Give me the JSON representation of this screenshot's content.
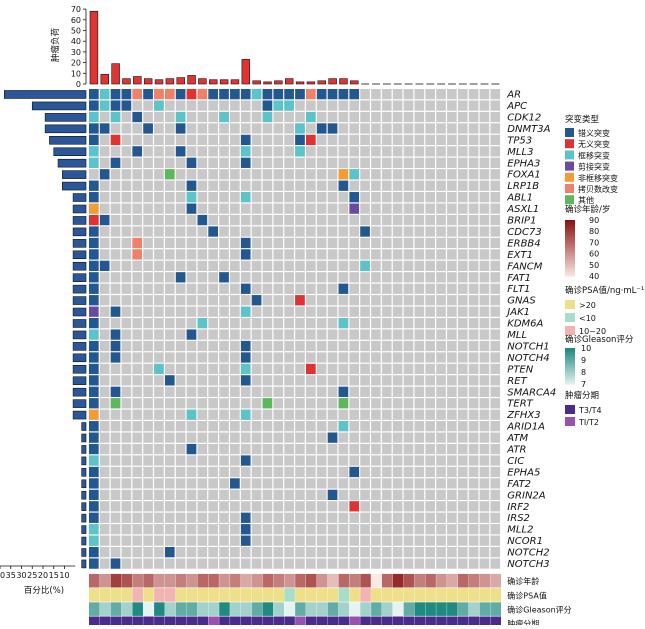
{
  "chart_data": {
    "type": "heatmap",
    "genes": [
      "AR",
      "APC",
      "CDK12",
      "DNMT3A",
      "TP53",
      "MLL3",
      "EPHA3",
      "FOXA1",
      "LRP1B",
      "ABL1",
      "ASXL1",
      "BRIP1",
      "CDC73",
      "ERBB4",
      "EXT1",
      "FANCM",
      "FAT1",
      "FLT1",
      "GNAS",
      "JAK1",
      "KDM6A",
      "MLL",
      "NOTCH1",
      "NOTCH4",
      "PTEN",
      "RET",
      "SMARCA4",
      "TERT",
      "ZFHX3",
      "ARID1A",
      "ATM",
      "ATR",
      "CIC",
      "EPHA5",
      "FAT2",
      "GRIN2A",
      "IRF2",
      "IRS2",
      "MLL2",
      "NCOR1",
      "NOTCH2",
      "NOTCH3"
    ],
    "gene_percent": [
      38,
      25,
      19,
      19,
      17,
      15,
      13,
      11,
      11,
      6,
      6,
      6,
      6,
      6,
      6,
      6,
      6,
      6,
      6,
      6,
      6,
      6,
      6,
      6,
      6,
      6,
      6,
      6,
      6,
      2,
      2,
      2,
      2,
      2,
      2,
      2,
      2,
      2,
      2,
      2,
      2,
      2
    ],
    "percent_axis": {
      "label": "百分比(%)",
      "ticks": [
        40,
        35,
        30,
        25,
        20,
        15,
        10
      ]
    },
    "tumor_burden": {
      "label": "肿瘤负荷",
      "ticks": [
        0,
        10,
        20,
        30,
        40,
        50,
        60,
        70
      ],
      "values": [
        68,
        9,
        19,
        5,
        7,
        5,
        4,
        5,
        6,
        8,
        5,
        4,
        4,
        4,
        23,
        3,
        2,
        3,
        5,
        2,
        2,
        3,
        5,
        5,
        3,
        0,
        0,
        0,
        0,
        0,
        0,
        0,
        0,
        0,
        0,
        0,
        0,
        0
      ]
    },
    "mutation_types": [
      "错义突变",
      "无义突变",
      "框移突变",
      "剪接突变",
      "非框移突变",
      "拷贝数改变",
      "其他"
    ],
    "mutation_colors": [
      "#23578f",
      "#e03232",
      "#5cc3c9",
      "#6a4a9c",
      "#f39c34",
      "#f08068",
      "#5cb85c"
    ],
    "mutations": [
      [
        0,
        0,
        0
      ],
      [
        0,
        1,
        2
      ],
      [
        0,
        2,
        0
      ],
      [
        0,
        3,
        0
      ],
      [
        0,
        4,
        5
      ],
      [
        0,
        5,
        0
      ],
      [
        0,
        6,
        5
      ],
      [
        0,
        7,
        5
      ],
      [
        0,
        8,
        0
      ],
      [
        0,
        9,
        1
      ],
      [
        0,
        10,
        5
      ],
      [
        0,
        11,
        0
      ],
      [
        0,
        12,
        0
      ],
      [
        0,
        13,
        0
      ],
      [
        0,
        14,
        0
      ],
      [
        0,
        15,
        2
      ],
      [
        0,
        16,
        0
      ],
      [
        0,
        17,
        0
      ],
      [
        0,
        18,
        0
      ],
      [
        0,
        19,
        0
      ],
      [
        0,
        20,
        5
      ],
      [
        0,
        21,
        0
      ],
      [
        0,
        22,
        0
      ],
      [
        0,
        23,
        0
      ],
      [
        0,
        24,
        0
      ],
      [
        1,
        0,
        0
      ],
      [
        1,
        1,
        2
      ],
      [
        1,
        2,
        0
      ],
      [
        1,
        3,
        0
      ],
      [
        1,
        6,
        2
      ],
      [
        1,
        16,
        0
      ],
      [
        1,
        17,
        2
      ],
      [
        1,
        18,
        2
      ],
      [
        2,
        0,
        2
      ],
      [
        2,
        2,
        2
      ],
      [
        2,
        4,
        0
      ],
      [
        2,
        8,
        2
      ],
      [
        2,
        12,
        2
      ],
      [
        2,
        16,
        2
      ],
      [
        2,
        20,
        2
      ],
      [
        3,
        0,
        0
      ],
      [
        3,
        1,
        0
      ],
      [
        3,
        5,
        0
      ],
      [
        3,
        8,
        0
      ],
      [
        3,
        19,
        2
      ],
      [
        3,
        21,
        0
      ],
      [
        3,
        22,
        0
      ],
      [
        4,
        0,
        0
      ],
      [
        4,
        2,
        1
      ],
      [
        4,
        14,
        0
      ],
      [
        4,
        19,
        0
      ],
      [
        4,
        20,
        1
      ],
      [
        5,
        0,
        2
      ],
      [
        5,
        4,
        0
      ],
      [
        5,
        8,
        0
      ],
      [
        5,
        14,
        2
      ],
      [
        5,
        19,
        2
      ],
      [
        6,
        0,
        2
      ],
      [
        6,
        2,
        0
      ],
      [
        6,
        9,
        0
      ],
      [
        6,
        14,
        0
      ],
      [
        7,
        1,
        0
      ],
      [
        7,
        7,
        6
      ],
      [
        7,
        23,
        4
      ],
      [
        7,
        24,
        2
      ],
      [
        8,
        0,
        0
      ],
      [
        8,
        9,
        0
      ],
      [
        8,
        23,
        0
      ],
      [
        9,
        0,
        0
      ],
      [
        9,
        9,
        2
      ],
      [
        9,
        14,
        2
      ],
      [
        9,
        24,
        0
      ],
      [
        10,
        0,
        4
      ],
      [
        10,
        9,
        0
      ],
      [
        10,
        24,
        3
      ],
      [
        11,
        0,
        1
      ],
      [
        11,
        1,
        0
      ],
      [
        11,
        10,
        0
      ],
      [
        12,
        0,
        0
      ],
      [
        12,
        11,
        0
      ],
      [
        12,
        25,
        0
      ],
      [
        13,
        0,
        0
      ],
      [
        13,
        4,
        5
      ],
      [
        13,
        14,
        0
      ],
      [
        14,
        0,
        0
      ],
      [
        14,
        4,
        5
      ],
      [
        14,
        14,
        0
      ],
      [
        15,
        0,
        0
      ],
      [
        15,
        1,
        0
      ],
      [
        15,
        25,
        2
      ],
      [
        16,
        0,
        0
      ],
      [
        16,
        8,
        0
      ],
      [
        16,
        12,
        0
      ],
      [
        17,
        0,
        0
      ],
      [
        17,
        14,
        0
      ],
      [
        17,
        23,
        0
      ],
      [
        18,
        0,
        0
      ],
      [
        18,
        15,
        0
      ],
      [
        18,
        19,
        1
      ],
      [
        19,
        0,
        3
      ],
      [
        19,
        2,
        0
      ],
      [
        19,
        14,
        2
      ],
      [
        20,
        0,
        0
      ],
      [
        20,
        10,
        2
      ],
      [
        20,
        23,
        2
      ],
      [
        21,
        0,
        2
      ],
      [
        21,
        2,
        0
      ],
      [
        21,
        9,
        0
      ],
      [
        22,
        0,
        0
      ],
      [
        22,
        2,
        0
      ],
      [
        22,
        14,
        0
      ],
      [
        23,
        0,
        0
      ],
      [
        23,
        2,
        0
      ],
      [
        23,
        14,
        0
      ],
      [
        24,
        0,
        0
      ],
      [
        24,
        6,
        2
      ],
      [
        24,
        14,
        2
      ],
      [
        24,
        20,
        1
      ],
      [
        25,
        0,
        0
      ],
      [
        25,
        7,
        0
      ],
      [
        25,
        14,
        0
      ],
      [
        26,
        0,
        0
      ],
      [
        26,
        2,
        0
      ],
      [
        26,
        23,
        0
      ],
      [
        27,
        0,
        0
      ],
      [
        27,
        2,
        6
      ],
      [
        27,
        16,
        6
      ],
      [
        27,
        23,
        6
      ],
      [
        28,
        0,
        4
      ],
      [
        28,
        9,
        2
      ],
      [
        28,
        14,
        2
      ],
      [
        29,
        0,
        0
      ],
      [
        29,
        23,
        2
      ],
      [
        30,
        0,
        0
      ],
      [
        30,
        22,
        0
      ],
      [
        31,
        0,
        0
      ],
      [
        31,
        9,
        0
      ],
      [
        32,
        0,
        2
      ],
      [
        32,
        14,
        0
      ],
      [
        33,
        0,
        0
      ],
      [
        33,
        24,
        0
      ],
      [
        34,
        0,
        0
      ],
      [
        34,
        13,
        0
      ],
      [
        35,
        0,
        0
      ],
      [
        35,
        22,
        0
      ],
      [
        36,
        0,
        0
      ],
      [
        36,
        24,
        1
      ],
      [
        37,
        0,
        0
      ],
      [
        37,
        14,
        0
      ],
      [
        38,
        0,
        2
      ],
      [
        38,
        14,
        0
      ],
      [
        39,
        0,
        2
      ],
      [
        39,
        14,
        0
      ],
      [
        40,
        0,
        0
      ],
      [
        40,
        7,
        0
      ],
      [
        41,
        0,
        0
      ],
      [
        41,
        2,
        0
      ]
    ],
    "clinical": {
      "rows": [
        "确诊年龄",
        "确诊PSA值",
        "确诊Gleason评分",
        "肿瘤分期"
      ],
      "age": [
        70,
        60,
        80,
        75,
        65,
        70,
        60,
        60,
        65,
        60,
        70,
        70,
        60,
        65,
        55,
        60,
        70,
        65,
        60,
        70,
        75,
        60,
        50,
        70,
        65,
        75,
        40,
        70,
        85,
        75,
        65,
        70,
        60,
        55,
        70,
        65,
        60,
        55
      ],
      "psa": [
        ">20",
        ">20",
        ">20",
        ">20",
        "10~20",
        ">20",
        "10~20",
        "10~20",
        ">20",
        ">20",
        ">20",
        ">20",
        ">20",
        ">20",
        ">20",
        ">20",
        ">20",
        ">20",
        "<10",
        ">20",
        ">20",
        ">20",
        ">20",
        "<10",
        ">20",
        "10~20",
        ">20",
        ">20",
        ">20",
        ">20",
        ">20",
        ">20",
        ">20",
        ">20",
        ">20",
        ">20",
        ">20",
        ">20"
      ],
      "gleason": [
        9,
        8,
        9,
        8,
        10,
        7,
        10,
        8,
        9,
        9,
        8,
        8,
        10,
        8,
        8,
        9,
        10,
        8,
        7,
        9,
        8,
        8,
        9,
        8,
        7,
        8,
        9,
        8,
        7,
        9,
        10,
        10,
        10,
        10,
        9,
        8,
        9,
        9
      ],
      "stage": [
        "T3/T4",
        "T3/T4",
        "T3/T4",
        "T3/T4",
        "T3/T4",
        "T3/T4",
        "T3/T4",
        "T3/T4",
        "T3/T4",
        "T3/T4",
        "T3/T4",
        "T1/T2",
        "T3/T4",
        "T3/T4",
        "T3/T4",
        "T3/T4",
        "T3/T4",
        "T3/T4",
        "T3/T4",
        "T1/T2",
        "T3/T4",
        "T3/T4",
        "T3/T4",
        "T3/T4",
        "T1/T2",
        "T3/T4",
        "T3/T4",
        "T3/T4",
        "T3/T4",
        "T3/T4",
        "T3/T4",
        "T3/T4",
        "T3/T4",
        "T3/T4",
        "T3/T4",
        "T3/T4",
        "T3/T4",
        "T3/T4"
      ]
    },
    "legend": {
      "mutation_title": "突变类型",
      "age_title": "确诊年龄/岁",
      "age_ticks": [
        90,
        80,
        70,
        60,
        50,
        40
      ],
      "psa_title": "确诊PSA值/ng·mL⁻¹",
      "psa_items": [
        ">20",
        "<10",
        "10~20"
      ],
      "psa_colors": [
        "#eee08a",
        "#a8ddc8",
        "#f2b3b3"
      ],
      "gleason_title": "确诊Gleason评分",
      "gleason_ticks": [
        10,
        9,
        8,
        7
      ],
      "stage_title": "肿瘤分期",
      "stage_items": [
        "T3/T4",
        "TI/T2"
      ],
      "stage_colors": [
        "#4a2a8c",
        "#9a50b0"
      ]
    },
    "empty_color": "#c8c8c8",
    "bar_color": "#df3434",
    "gene_bar_color": "#2b579a"
  }
}
